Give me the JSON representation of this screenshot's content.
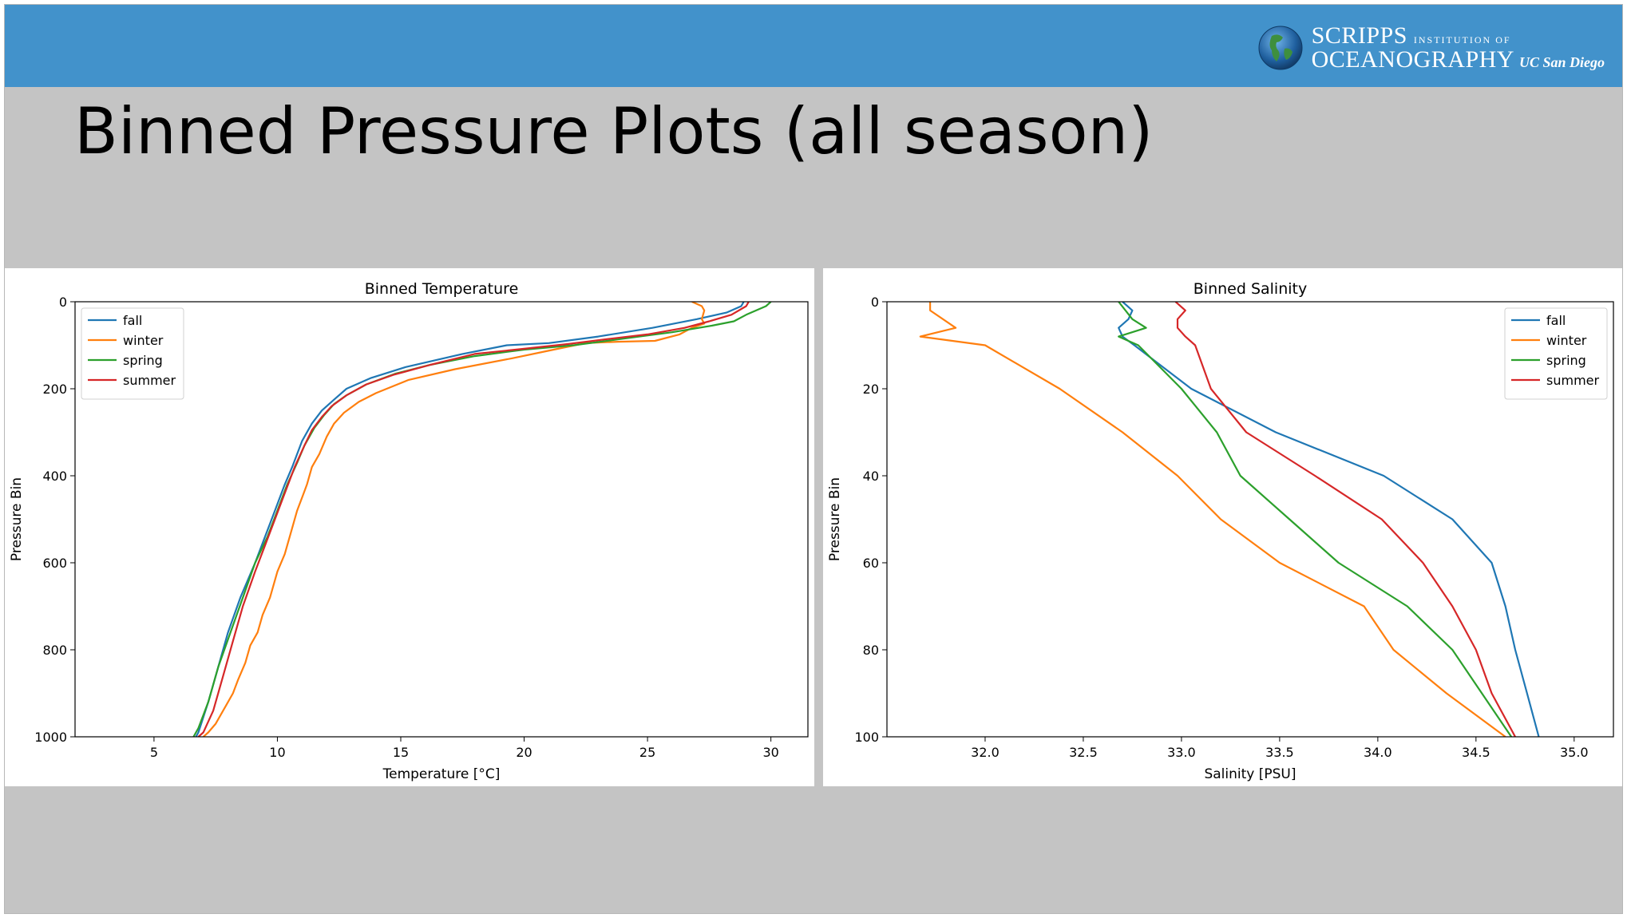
{
  "slide": {
    "title": "Binned Pressure Plots (all season)",
    "logo": {
      "line1_big": "SCRIPPS",
      "line1_small": "INSTITUTION OF",
      "line2_big": "OCEANOGRAPHY",
      "line2_small": "UC San Diego",
      "icon": "globe-icon"
    },
    "colors": {
      "header": "#4292cb",
      "background": "#c4c4c4"
    }
  },
  "chart_data": [
    {
      "type": "line",
      "title": "Binned Temperature",
      "xlabel": "Temperature [°C]",
      "ylabel": "Pressure Bin",
      "xlim": [
        1.8,
        31.5
      ],
      "ylim": [
        1000,
        0
      ],
      "y_inverted": true,
      "xticks": [
        5,
        10,
        15,
        20,
        25,
        30
      ],
      "yticks": [
        0,
        200,
        400,
        600,
        800,
        1000
      ],
      "legend": "top-left",
      "series": [
        {
          "name": "fall",
          "color": "#1f77b4",
          "points": [
            [
              28.9,
              0
            ],
            [
              28.8,
              10
            ],
            [
              28.2,
              25
            ],
            [
              27,
              40
            ],
            [
              25.2,
              60
            ],
            [
              23,
              80
            ],
            [
              21,
              95
            ],
            [
              19.3,
              100
            ],
            [
              17.5,
              120
            ],
            [
              15.2,
              150
            ],
            [
              13.8,
              175
            ],
            [
              12.8,
              200
            ],
            [
              12.3,
              225
            ],
            [
              11.8,
              250
            ],
            [
              11.4,
              280
            ],
            [
              11,
              320
            ],
            [
              10.6,
              380
            ],
            [
              10.3,
              420
            ],
            [
              9.9,
              480
            ],
            [
              9.5,
              540
            ],
            [
              9.1,
              600
            ],
            [
              8.5,
              680
            ],
            [
              8,
              760
            ],
            [
              7.6,
              840
            ],
            [
              7.2,
              920
            ],
            [
              6.8,
              990
            ],
            [
              6.7,
              1000
            ]
          ]
        },
        {
          "name": "winter",
          "color": "#ff7f0e",
          "points": [
            [
              26.8,
              0
            ],
            [
              27.2,
              10
            ],
            [
              27.3,
              20
            ],
            [
              27.2,
              40
            ],
            [
              27.3,
              50
            ],
            [
              26.8,
              60
            ],
            [
              26.3,
              75
            ],
            [
              25.3,
              90
            ],
            [
              23.8,
              92
            ],
            [
              22.5,
              95
            ],
            [
              21.2,
              110
            ],
            [
              19.5,
              130
            ],
            [
              17.2,
              155
            ],
            [
              15.3,
              180
            ],
            [
              14,
              210
            ],
            [
              13.3,
              230
            ],
            [
              12.7,
              255
            ],
            [
              12.3,
              280
            ],
            [
              12,
              310
            ],
            [
              11.7,
              350
            ],
            [
              11.4,
              380
            ],
            [
              11.2,
              420
            ],
            [
              11,
              450
            ],
            [
              10.8,
              480
            ],
            [
              10.6,
              520
            ],
            [
              10.3,
              580
            ],
            [
              10,
              620
            ],
            [
              9.7,
              680
            ],
            [
              9.4,
              720
            ],
            [
              9.2,
              760
            ],
            [
              8.9,
              790
            ],
            [
              8.7,
              830
            ],
            [
              8.4,
              870
            ],
            [
              8.2,
              900
            ],
            [
              7.9,
              930
            ],
            [
              7.5,
              970
            ],
            [
              7.2,
              990
            ],
            [
              7,
              1000
            ]
          ]
        },
        {
          "name": "spring",
          "color": "#2ca02c",
          "points": [
            [
              30,
              0
            ],
            [
              29.8,
              10
            ],
            [
              29,
              30
            ],
            [
              28.5,
              45
            ],
            [
              27.6,
              55
            ],
            [
              26,
              70
            ],
            [
              24,
              85
            ],
            [
              22,
              100
            ],
            [
              20,
              110
            ],
            [
              18,
              125
            ],
            [
              16.2,
              145
            ],
            [
              14.8,
              165
            ],
            [
              13.6,
              190
            ],
            [
              12.8,
              215
            ],
            [
              12.3,
              235
            ],
            [
              11.9,
              260
            ],
            [
              11.5,
              290
            ],
            [
              11.1,
              330
            ],
            [
              10.8,
              370
            ],
            [
              10.4,
              420
            ],
            [
              10,
              480
            ],
            [
              9.6,
              540
            ],
            [
              9.1,
              600
            ],
            [
              8.6,
              680
            ],
            [
              8.1,
              760
            ],
            [
              7.6,
              840
            ],
            [
              7.2,
              920
            ],
            [
              6.8,
              980
            ],
            [
              6.6,
              1000
            ]
          ]
        },
        {
          "name": "summer",
          "color": "#d62728",
          "points": [
            [
              29.1,
              0
            ],
            [
              29.0,
              10
            ],
            [
              28.4,
              30
            ],
            [
              27.5,
              45
            ],
            [
              26.5,
              60
            ],
            [
              25,
              75
            ],
            [
              23.5,
              85
            ],
            [
              21.8,
              97
            ],
            [
              20,
              108
            ],
            [
              18,
              120
            ],
            [
              16.2,
              145
            ],
            [
              14.7,
              168
            ],
            [
              13.6,
              190
            ],
            [
              12.8,
              215
            ],
            [
              12.2,
              240
            ],
            [
              11.8,
              265
            ],
            [
              11.4,
              295
            ],
            [
              11.1,
              330
            ],
            [
              10.7,
              380
            ],
            [
              10.3,
              440
            ],
            [
              9.9,
              500
            ],
            [
              9.5,
              560
            ],
            [
              9.1,
              620
            ],
            [
              8.6,
              700
            ],
            [
              8.2,
              780
            ],
            [
              7.8,
              860
            ],
            [
              7.4,
              940
            ],
            [
              7,
              990
            ],
            [
              6.8,
              1000
            ]
          ]
        }
      ]
    },
    {
      "type": "line",
      "title": "Binned Salinity",
      "xlabel": "Salinity [PSU]",
      "ylabel": "Pressure Bin",
      "xlim": [
        31.5,
        35.2
      ],
      "ylim": [
        100,
        0
      ],
      "y_inverted": true,
      "xticks": [
        32.0,
        32.5,
        33.0,
        33.5,
        34.0,
        34.5,
        35.0
      ],
      "yticks": [
        0,
        20,
        40,
        60,
        80,
        100
      ],
      "legend": "top-right",
      "series": [
        {
          "name": "fall",
          "color": "#1f77b4",
          "points": [
            [
              32.7,
              0
            ],
            [
              32.75,
              2
            ],
            [
              32.73,
              4
            ],
            [
              32.68,
              6
            ],
            [
              32.7,
              8
            ],
            [
              32.76,
              10
            ],
            [
              33.05,
              20
            ],
            [
              33.48,
              30
            ],
            [
              34.03,
              40
            ],
            [
              34.38,
              50
            ],
            [
              34.58,
              60
            ],
            [
              34.65,
              70
            ],
            [
              34.7,
              80
            ],
            [
              34.76,
              90
            ],
            [
              34.82,
              100
            ]
          ]
        },
        {
          "name": "winter",
          "color": "#ff7f0e",
          "points": [
            [
              31.72,
              0
            ],
            [
              31.72,
              2
            ],
            [
              31.85,
              6
            ],
            [
              31.67,
              8
            ],
            [
              32.0,
              10
            ],
            [
              32.38,
              20
            ],
            [
              32.7,
              30
            ],
            [
              32.98,
              40
            ],
            [
              33.2,
              50
            ],
            [
              33.5,
              60
            ],
            [
              33.93,
              70
            ],
            [
              34.08,
              80
            ],
            [
              34.35,
              90
            ],
            [
              34.65,
              100
            ]
          ]
        },
        {
          "name": "spring",
          "color": "#2ca02c",
          "points": [
            [
              32.68,
              0
            ],
            [
              32.75,
              4
            ],
            [
              32.82,
              6
            ],
            [
              32.68,
              8
            ],
            [
              32.78,
              10
            ],
            [
              33.0,
              20
            ],
            [
              33.18,
              30
            ],
            [
              33.3,
              40
            ],
            [
              33.55,
              50
            ],
            [
              33.8,
              60
            ],
            [
              34.15,
              70
            ],
            [
              34.38,
              80
            ],
            [
              34.53,
              90
            ],
            [
              34.68,
              100
            ]
          ]
        },
        {
          "name": "summer",
          "color": "#d62728",
          "points": [
            [
              32.97,
              0
            ],
            [
              33.02,
              2
            ],
            [
              32.98,
              4
            ],
            [
              32.98,
              6
            ],
            [
              33.02,
              8
            ],
            [
              33.07,
              10
            ],
            [
              33.15,
              20
            ],
            [
              33.33,
              30
            ],
            [
              33.68,
              40
            ],
            [
              34.02,
              50
            ],
            [
              34.23,
              60
            ],
            [
              34.38,
              70
            ],
            [
              34.5,
              80
            ],
            [
              34.58,
              90
            ],
            [
              34.7,
              100
            ]
          ]
        }
      ]
    }
  ]
}
